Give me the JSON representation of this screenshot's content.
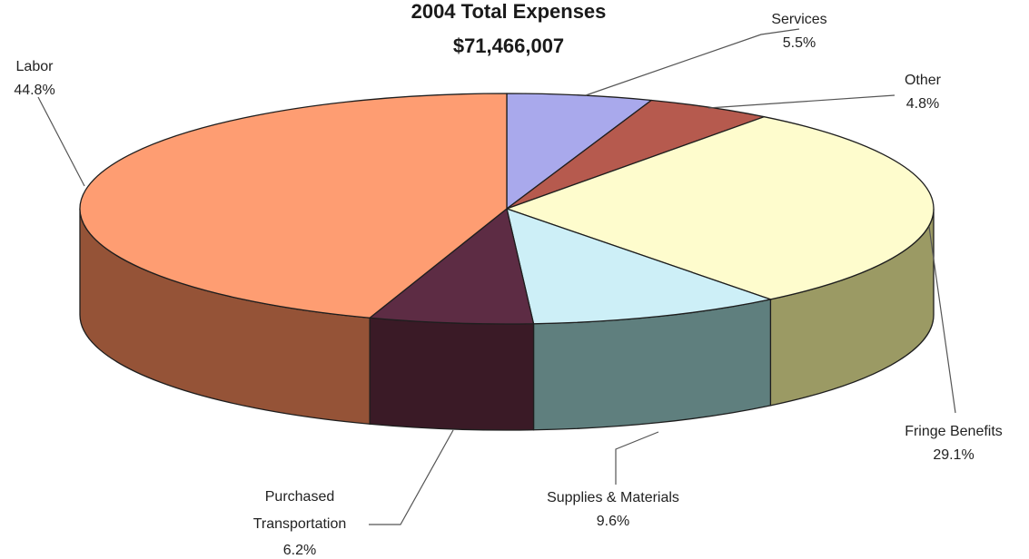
{
  "chart_data": {
    "type": "pie",
    "title": "2004 Total Expenses",
    "subtitle": "$71,466,007",
    "slices": [
      {
        "label": "Services",
        "value": 5.5,
        "value_label": "5.5%",
        "top_color": "#a9a9ec",
        "side_color": "#6f6fa8"
      },
      {
        "label": "Other",
        "value": 4.8,
        "value_label": "4.8%",
        "top_color": "#b65a4e",
        "side_color": "#7c3a32"
      },
      {
        "label": "Fringe Benefits",
        "value": 29.1,
        "value_label": "29.1%",
        "top_color": "#fefccd",
        "side_color": "#9b9a64"
      },
      {
        "label": "Supplies & Materials",
        "value": 9.6,
        "value_label": "9.6%",
        "top_color": "#cdeff7",
        "side_color": "#5f7f7e"
      },
      {
        "label": "Purchased\nTransportation",
        "value": 6.2,
        "value_label": "6.2%",
        "top_color": "#5d2c44",
        "side_color": "#3a1a26"
      },
      {
        "label": "Labor",
        "value": 44.8,
        "value_label": "44.8%",
        "top_color": "#fe9d72",
        "side_color": "#955337"
      }
    ]
  }
}
